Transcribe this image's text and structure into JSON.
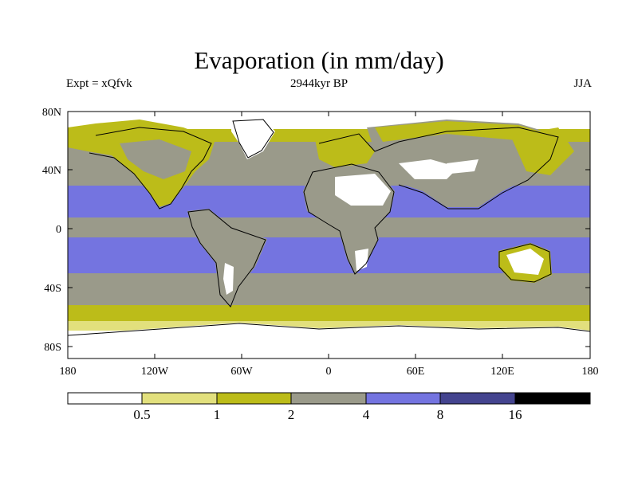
{
  "title": "Evaporation (in mm/day)",
  "subtitle_left": "Expt = xQfvk",
  "subtitle_center": "2944kyr BP",
  "subtitle_right": "JJA",
  "lat_ticks": [
    "80N",
    "40N",
    "0",
    "40S",
    "80S"
  ],
  "lon_ticks": [
    "180",
    "120W",
    "60W",
    "0",
    "60E",
    "120E",
    "180"
  ],
  "colorbar": {
    "levels": [
      "0.5",
      "1",
      "2",
      "4",
      "8",
      "16"
    ],
    "colors": [
      "#ffffff",
      "#e2e07d",
      "#bcbc19",
      "#9a9a8a",
      "#7474e0",
      "#44448f",
      "#000000"
    ]
  },
  "colors": {
    "land_low": "#ffffff",
    "land_mid": "#bcbc19",
    "ocean_mid": "#9a9a8a",
    "ocean_high": "#7474e0",
    "coast": "#000000"
  }
}
